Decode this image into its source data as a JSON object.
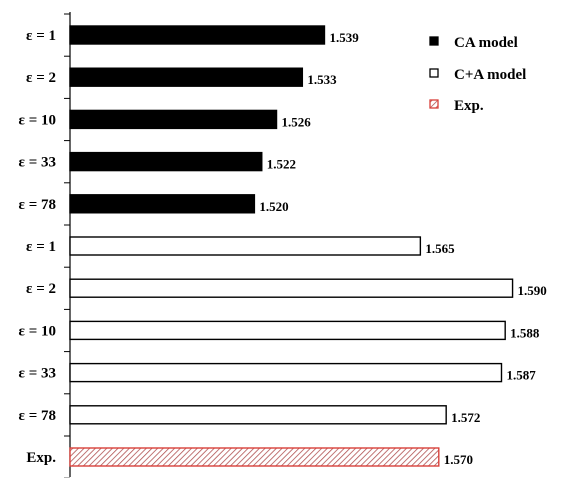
{
  "chart_data": {
    "type": "bar",
    "orientation": "horizontal",
    "categories": [
      "ε = 1",
      "ε = 2",
      "ε = 10",
      "ε = 33",
      "ε = 78",
      "ε = 1",
      "ε = 2",
      "ε = 10",
      "ε = 33",
      "ε = 78",
      "Exp."
    ],
    "values": [
      1.539,
      1.533,
      1.526,
      1.522,
      1.52,
      1.565,
      1.59,
      1.588,
      1.587,
      1.572,
      1.57
    ],
    "value_labels": [
      "1.539",
      "1.533",
      "1.526",
      "1.522",
      "1.520",
      "1.565",
      "1.590",
      "1.588",
      "1.587",
      "1.572",
      "1.570"
    ],
    "series_index": [
      0,
      0,
      0,
      0,
      0,
      1,
      1,
      1,
      1,
      1,
      2
    ],
    "series": [
      {
        "name": "CA model",
        "fill": "#000000",
        "stroke": "#000000",
        "pattern": "solid"
      },
      {
        "name": "C+A model",
        "fill": "#ffffff",
        "stroke": "#000000",
        "pattern": "solid"
      },
      {
        "name": "Exp.",
        "fill": "#ffffff",
        "stroke": "#d9403a",
        "pattern": "hatched"
      }
    ],
    "xlim": [
      1.47,
      1.595
    ],
    "grid": false,
    "legend_position": "top-right",
    "title": "",
    "xlabel": "",
    "ylabel": ""
  }
}
